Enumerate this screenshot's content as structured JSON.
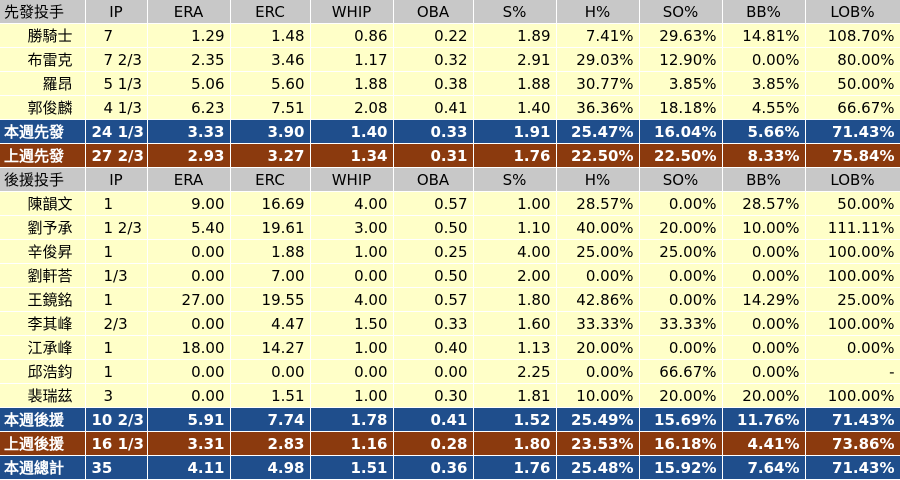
{
  "colors": {
    "header_bg": "#c8c8c8",
    "row_bg": "#ffffc8",
    "week_row_bg": "#1f4e8c",
    "last_week_row_bg": "#8b3a0e",
    "text_light": "#ffffff"
  },
  "columns": [
    "IP",
    "ERA",
    "ERC",
    "WHIP",
    "OBA",
    "S%",
    "H%",
    "SO%",
    "BB%",
    "LOB%"
  ],
  "starters_header": "先發投手",
  "starters": [
    {
      "name": "勝騎士",
      "IP": "7",
      "ERA": "1.29",
      "ERC": "1.48",
      "WHIP": "0.86",
      "OBA": "0.22",
      "S%": "1.89",
      "H%": "7.41%",
      "SO%": "29.63%",
      "BB%": "14.81%",
      "LOB%": "108.70%"
    },
    {
      "name": "布雷克",
      "IP": "7 2/3",
      "ERA": "2.35",
      "ERC": "3.46",
      "WHIP": "1.17",
      "OBA": "0.32",
      "S%": "2.91",
      "H%": "29.03%",
      "SO%": "12.90%",
      "BB%": "0.00%",
      "LOB%": "80.00%"
    },
    {
      "name": "羅昂",
      "IP": "5 1/3",
      "ERA": "5.06",
      "ERC": "5.60",
      "WHIP": "1.88",
      "OBA": "0.38",
      "S%": "1.88",
      "H%": "30.77%",
      "SO%": "3.85%",
      "BB%": "3.85%",
      "LOB%": "50.00%"
    },
    {
      "name": "郭俊麟",
      "IP": "4 1/3",
      "ERA": "6.23",
      "ERC": "7.51",
      "WHIP": "2.08",
      "OBA": "0.41",
      "S%": "1.40",
      "H%": "36.36%",
      "SO%": "18.18%",
      "BB%": "4.55%",
      "LOB%": "66.67%"
    }
  ],
  "starters_week": {
    "name": "本週先發",
    "IP": "24 1/3",
    "ERA": "3.33",
    "ERC": "3.90",
    "WHIP": "1.40",
    "OBA": "0.33",
    "S%": "1.91",
    "H%": "25.47%",
    "SO%": "16.04%",
    "BB%": "5.66%",
    "LOB%": "71.43%"
  },
  "starters_last_week": {
    "name": "上週先發",
    "IP": "27 2/3",
    "ERA": "2.93",
    "ERC": "3.27",
    "WHIP": "1.34",
    "OBA": "0.31",
    "S%": "1.76",
    "H%": "22.50%",
    "SO%": "22.50%",
    "BB%": "8.33%",
    "LOB%": "75.84%"
  },
  "relievers_header": "後援投手",
  "relievers": [
    {
      "name": "陳韻文",
      "IP": "1",
      "ERA": "9.00",
      "ERC": "16.69",
      "WHIP": "4.00",
      "OBA": "0.57",
      "S%": "1.00",
      "H%": "28.57%",
      "SO%": "0.00%",
      "BB%": "28.57%",
      "LOB%": "50.00%"
    },
    {
      "name": "劉予承",
      "IP": "1 2/3",
      "ERA": "5.40",
      "ERC": "19.61",
      "WHIP": "3.00",
      "OBA": "0.50",
      "S%": "1.10",
      "H%": "40.00%",
      "SO%": "20.00%",
      "BB%": "10.00%",
      "LOB%": "111.11%"
    },
    {
      "name": "辛俊昇",
      "IP": "1",
      "ERA": "0.00",
      "ERC": "1.88",
      "WHIP": "1.00",
      "OBA": "0.25",
      "S%": "4.00",
      "H%": "25.00%",
      "SO%": "25.00%",
      "BB%": "0.00%",
      "LOB%": "100.00%"
    },
    {
      "name": "劉軒荅",
      "IP": "1/3",
      "ERA": "0.00",
      "ERC": "7.00",
      "WHIP": "0.00",
      "OBA": "0.50",
      "S%": "2.00",
      "H%": "0.00%",
      "SO%": "0.00%",
      "BB%": "0.00%",
      "LOB%": "100.00%"
    },
    {
      "name": "王鏡銘",
      "IP": "1",
      "ERA": "27.00",
      "ERC": "19.55",
      "WHIP": "4.00",
      "OBA": "0.57",
      "S%": "1.80",
      "H%": "42.86%",
      "SO%": "0.00%",
      "BB%": "14.29%",
      "LOB%": "25.00%"
    },
    {
      "name": "李其峰",
      "IP": "2/3",
      "ERA": "0.00",
      "ERC": "4.47",
      "WHIP": "1.50",
      "OBA": "0.33",
      "S%": "1.60",
      "H%": "33.33%",
      "SO%": "33.33%",
      "BB%": "0.00%",
      "LOB%": "100.00%"
    },
    {
      "name": "江承峰",
      "IP": "1",
      "ERA": "18.00",
      "ERC": "14.27",
      "WHIP": "1.00",
      "OBA": "0.40",
      "S%": "1.13",
      "H%": "20.00%",
      "SO%": "0.00%",
      "BB%": "0.00%",
      "LOB%": "0.00%"
    },
    {
      "name": "邱浩鈞",
      "IP": "1",
      "ERA": "0.00",
      "ERC": "0.00",
      "WHIP": "0.00",
      "OBA": "0.00",
      "S%": "2.25",
      "H%": "0.00%",
      "SO%": "66.67%",
      "BB%": "0.00%",
      "LOB%": "-"
    },
    {
      "name": "裴瑞茲",
      "IP": "3",
      "ERA": "0.00",
      "ERC": "1.51",
      "WHIP": "1.00",
      "OBA": "0.30",
      "S%": "1.81",
      "H%": "10.00%",
      "SO%": "20.00%",
      "BB%": "20.00%",
      "LOB%": "100.00%"
    }
  ],
  "relievers_week": {
    "name": "本週後援",
    "IP": "10 2/3",
    "ERA": "5.91",
    "ERC": "7.74",
    "WHIP": "1.78",
    "OBA": "0.41",
    "S%": "1.52",
    "H%": "25.49%",
    "SO%": "15.69%",
    "BB%": "11.76%",
    "LOB%": "71.43%"
  },
  "relievers_last_week": {
    "name": "上週後援",
    "IP": "16 1/3",
    "ERA": "3.31",
    "ERC": "2.83",
    "WHIP": "1.16",
    "OBA": "0.28",
    "S%": "1.80",
    "H%": "23.53%",
    "SO%": "16.18%",
    "BB%": "4.41%",
    "LOB%": "73.86%"
  },
  "total_week": {
    "name": "本週總計",
    "IP": "35",
    "ERA": "4.11",
    "ERC": "4.98",
    "WHIP": "1.51",
    "OBA": "0.36",
    "S%": "1.76",
    "H%": "25.48%",
    "SO%": "15.92%",
    "BB%": "7.64%",
    "LOB%": "71.43%"
  }
}
